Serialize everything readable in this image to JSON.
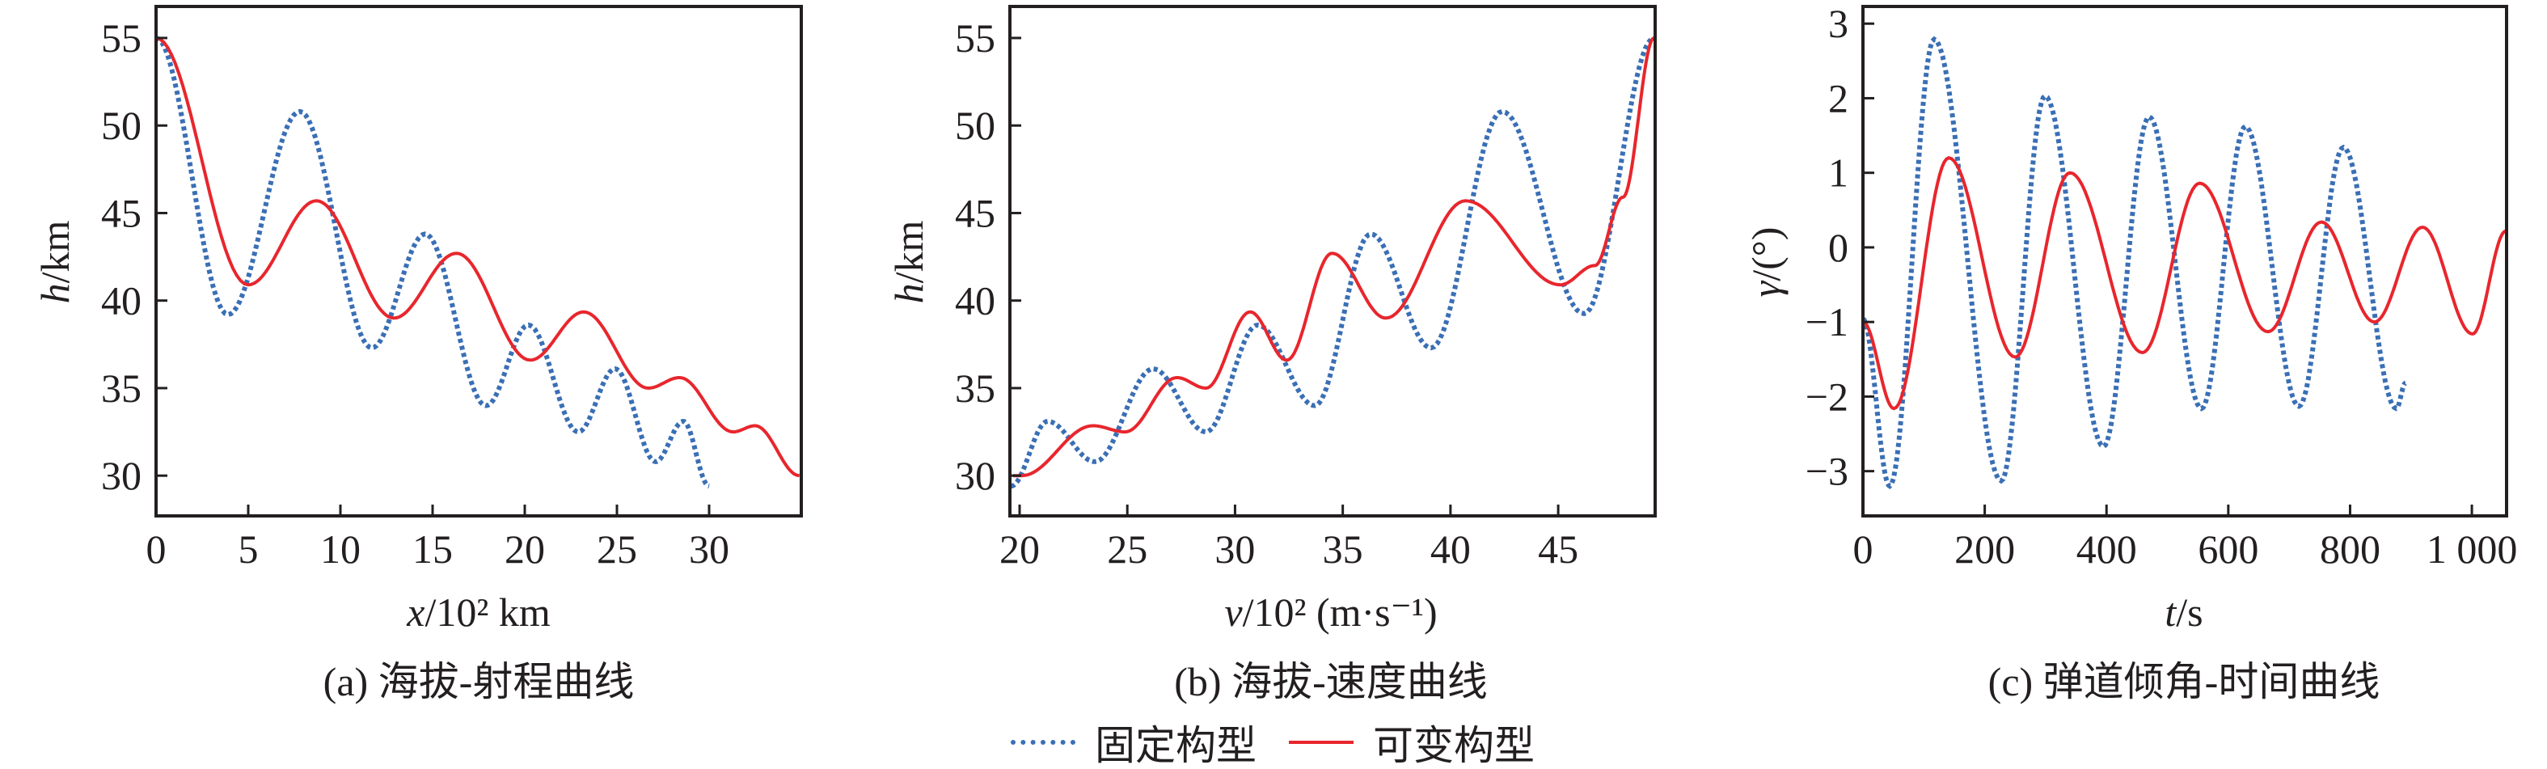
{
  "colors": {
    "fixed": "#3a6fb5",
    "variable": "#e8262d",
    "axis": "#231f20"
  },
  "legend": {
    "fixed": "固定构型",
    "variable": "可变构型"
  },
  "chart_data": [
    {
      "type": "line",
      "caption": "(a) 海拔-射程曲线",
      "xlabel_var": "x",
      "xlabel_rest": "/10² km",
      "ylabel_var": "h",
      "ylabel_rest": "/km",
      "xlim": [
        0,
        35
      ],
      "ylim": [
        27.7,
        56.8
      ],
      "xticks": [
        0,
        5,
        10,
        15,
        20,
        25,
        30
      ],
      "xtick_labels": [
        "0",
        "5",
        "10",
        "15",
        "20",
        "25",
        "30"
      ],
      "yticks": [
        30,
        35,
        40,
        45,
        50,
        55
      ],
      "ytick_labels": [
        "30",
        "35",
        "40",
        "45",
        "50",
        "55"
      ],
      "series": [
        {
          "name": "固定构型",
          "style": "dotted",
          "points": [
            [
              0,
              55
            ],
            [
              3.9,
              39.2
            ],
            [
              7.8,
              50.8
            ],
            [
              11.7,
              37.3
            ],
            [
              14.6,
              43.8
            ],
            [
              17.9,
              34.0
            ],
            [
              20.2,
              38.6
            ],
            [
              22.9,
              32.5
            ],
            [
              24.9,
              36.1
            ],
            [
              27.1,
              30.8
            ],
            [
              28.6,
              33.1
            ],
            [
              30,
              29.4
            ]
          ]
        },
        {
          "name": "可变构型",
          "style": "solid",
          "points": [
            [
              0,
              55
            ],
            [
              5.0,
              40.9
            ],
            [
              8.7,
              45.7
            ],
            [
              12.9,
              39.0
            ],
            [
              16.3,
              42.7
            ],
            [
              20.3,
              36.6
            ],
            [
              23.2,
              39.35
            ],
            [
              26.7,
              35.0
            ],
            [
              28.4,
              35.6
            ],
            [
              31.3,
              32.5
            ],
            [
              32.5,
              32.85
            ],
            [
              34.9,
              30.0
            ]
          ]
        }
      ]
    },
    {
      "type": "line",
      "caption": "(b) 海拔-速度曲线",
      "xlabel_var": "v",
      "xlabel_rest": "/10² (m·s⁻¹)",
      "ylabel_var": "h",
      "ylabel_rest": "/km",
      "xlim": [
        19.55,
        49.5
      ],
      "ylim": [
        27.7,
        56.8
      ],
      "xticks": [
        20,
        25,
        30,
        35,
        40,
        45
      ],
      "xtick_labels": [
        "20",
        "25",
        "30",
        "35",
        "40",
        "45"
      ],
      "yticks": [
        30,
        35,
        40,
        45,
        50,
        55
      ],
      "ytick_labels": [
        "30",
        "35",
        "40",
        "45",
        "50",
        "55"
      ],
      "series": [
        {
          "name": "固定构型",
          "style": "dotted",
          "points": [
            [
              19.6,
              29.4
            ],
            [
              21.3,
              33.1
            ],
            [
              23.5,
              30.8
            ],
            [
              26.2,
              36.1
            ],
            [
              28.65,
              32.5
            ],
            [
              31.05,
              38.6
            ],
            [
              33.7,
              34.0
            ],
            [
              36.3,
              43.8
            ],
            [
              39.1,
              37.3
            ],
            [
              42.4,
              50.8
            ],
            [
              46.2,
              39.25
            ],
            [
              49.45,
              55
            ]
          ]
        },
        {
          "name": "可变构型",
          "style": "solid",
          "points": [
            [
              19.7,
              30.0
            ],
            [
              20.1,
              30.0
            ],
            [
              23.4,
              32.85
            ],
            [
              24.9,
              32.5
            ],
            [
              27.3,
              35.6
            ],
            [
              28.65,
              35.0
            ],
            [
              30.7,
              39.35
            ],
            [
              32.4,
              36.6
            ],
            [
              34.5,
              42.7
            ],
            [
              37.0,
              39.0
            ],
            [
              40.7,
              45.7
            ],
            [
              45.1,
              40.9
            ],
            [
              46.7,
              42.0
            ],
            [
              48.0,
              45.9
            ],
            [
              49.45,
              55
            ]
          ]
        }
      ]
    },
    {
      "type": "line",
      "caption": "(c) 弹道倾角-时间曲线",
      "xlabel_var": "t",
      "xlabel_rest": "/s",
      "ylabel_var": "γ",
      "ylabel_rest": "/(°)",
      "xlim": [
        0,
        1057
      ],
      "ylim": [
        -3.6,
        3.23
      ],
      "xticks": [
        0,
        200,
        400,
        600,
        800,
        1000
      ],
      "xtick_labels": [
        "0",
        "200",
        "400",
        "600",
        "800",
        "1 000"
      ],
      "yticks": [
        -3,
        -2,
        -1,
        0,
        1,
        2,
        3
      ],
      "ytick_labels": [
        "−3",
        "−2",
        "−1",
        "0",
        "1",
        "2",
        "3"
      ],
      "series": [
        {
          "name": "固定构型",
          "style": "dotted",
          "points": [
            [
              0,
              -0.96
            ],
            [
              44,
              -3.2
            ],
            [
              117,
              2.79
            ],
            [
              227,
              -3.13
            ],
            [
              299,
              2.03
            ],
            [
              395,
              -2.67
            ],
            [
              470,
              1.75
            ],
            [
              556,
              -2.16
            ],
            [
              628,
              1.62
            ],
            [
              716,
              -2.13
            ],
            [
              789,
              1.34
            ],
            [
              876,
              -2.16
            ],
            [
              891,
              -1.82
            ]
          ]
        },
        {
          "name": "可变构型",
          "style": "solid",
          "points": [
            [
              0,
              -1.0
            ],
            [
              51,
              -2.16
            ],
            [
              141,
              1.2
            ],
            [
              250,
              -1.47
            ],
            [
              340,
              1.0
            ],
            [
              459,
              -1.41
            ],
            [
              553,
              0.86
            ],
            [
              665,
              -1.13
            ],
            [
              753,
              0.34
            ],
            [
              840,
              -1.0
            ],
            [
              919,
              0.27
            ],
            [
              1001,
              -1.16
            ],
            [
              1056,
              0.22
            ]
          ]
        }
      ]
    }
  ]
}
